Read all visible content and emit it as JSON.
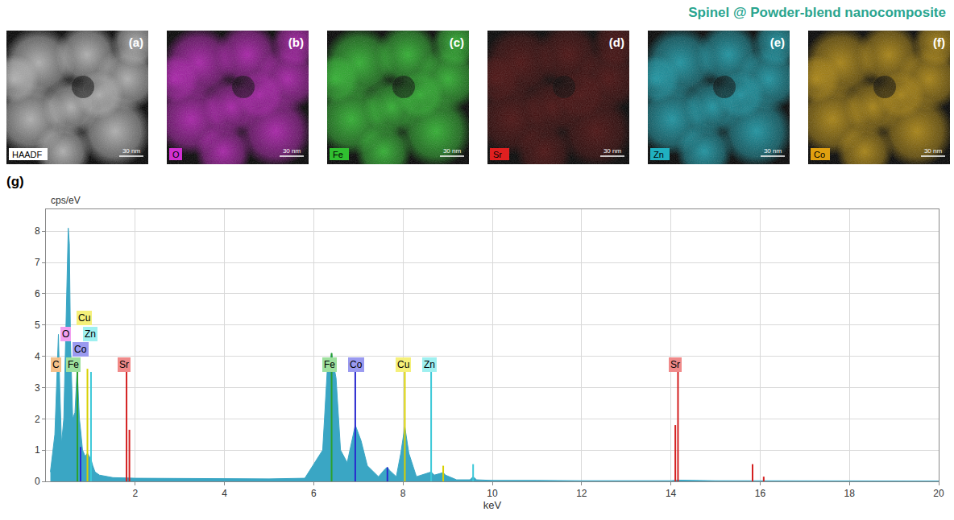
{
  "title": "Spinel @ Powder-blend nanocomposite",
  "panels": [
    {
      "letter": "(a)",
      "label": "HAADF",
      "color": "#b8b8b8",
      "label_color": "#ffffff",
      "scale_bar": "30 nm"
    },
    {
      "letter": "(b)",
      "label": "O",
      "color": "#b020b0",
      "label_color": "#d030d0",
      "scale_bar": "30 nm"
    },
    {
      "letter": "(c)",
      "label": "Fe",
      "color": "#30b830",
      "label_color": "#30c030",
      "scale_bar": "30 nm"
    },
    {
      "letter": "(d)",
      "label": "Sr",
      "color": "#4a0c0c",
      "label_color": "#e02020",
      "scale_bar": "30 nm"
    },
    {
      "letter": "(e)",
      "label": "Zn",
      "color": "#1a9aa8",
      "label_color": "#20b0c0",
      "scale_bar": "30 nm"
    },
    {
      "letter": "(f)",
      "label": "Co",
      "color": "#b08810",
      "label_color": "#e0a010",
      "scale_bar": "30 nm"
    }
  ],
  "chart_data": {
    "type": "area",
    "panel_letter": "(g)",
    "x_label": "keV",
    "y_label": "cps/eV",
    "xlim": [
      0,
      20
    ],
    "xticks": [
      2,
      4,
      6,
      8,
      10,
      12,
      14,
      16,
      18,
      20
    ],
    "ylim": [
      0,
      8.7
    ],
    "yticks": [
      0,
      1,
      2,
      3,
      4,
      5,
      6,
      7,
      8
    ],
    "grid": true,
    "color": "#3aa6c4",
    "x": [
      0.1,
      0.2,
      0.25,
      0.28,
      0.31,
      0.35,
      0.4,
      0.45,
      0.5,
      0.525,
      0.55,
      0.6,
      0.65,
      0.7,
      0.72,
      0.75,
      0.78,
      0.82,
      0.88,
      0.93,
      0.97,
      1.01,
      1.05,
      1.1,
      1.2,
      1.5,
      2,
      3,
      4,
      5,
      5.8,
      6.2,
      6.3,
      6.4,
      6.5,
      6.6,
      6.75,
      6.93,
      7.06,
      7.2,
      7.45,
      7.6,
      7.65,
      7.7,
      7.85,
      7.95,
      8.04,
      8.13,
      8.3,
      8.55,
      8.63,
      8.7,
      8.85,
      8.9,
      8.95,
      9.2,
      9.5,
      9.57,
      9.65,
      10,
      11,
      12,
      14,
      14.16,
      15,
      16,
      18,
      20
    ],
    "values": [
      0.3,
      1.5,
      3.5,
      4.7,
      3.0,
      1.2,
      2.0,
      5.5,
      8.1,
      7.6,
      4.5,
      2.0,
      2.2,
      3.6,
      3.0,
      2.0,
      1.6,
      1.0,
      0.8,
      0.9,
      0.8,
      0.7,
      0.5,
      0.3,
      0.2,
      0.12,
      0.1,
      0.09,
      0.08,
      0.08,
      0.1,
      1.0,
      3.5,
      4.1,
      3.3,
      1.0,
      0.6,
      1.8,
      1.3,
      0.5,
      0.15,
      0.4,
      0.45,
      0.35,
      0.15,
      0.9,
      1.75,
      0.9,
      0.15,
      0.25,
      0.3,
      0.2,
      0.25,
      0.28,
      0.2,
      0.05,
      0.05,
      0.15,
      0.05,
      0.03,
      0.03,
      0.02,
      0.02,
      0.04,
      0.02,
      0.02,
      0.01,
      0.01
    ],
    "lines": [
      {
        "element": "Fe",
        "color": "#2ca02c",
        "x": [
          0.705,
          6.4
        ],
        "values": [
          3.6,
          4.1
        ]
      },
      {
        "element": "Co",
        "color": "#2a2acf",
        "x": [
          0.776,
          6.93,
          7.65
        ],
        "values": [
          1.1,
          3.6,
          0.45
        ]
      },
      {
        "element": "Cu",
        "color": "#d8d000",
        "x": [
          0.93,
          8.04,
          8.9
        ],
        "values": [
          3.6,
          3.6,
          0.5
        ]
      },
      {
        "element": "Zn",
        "color": "#3cc8d8",
        "x": [
          1.01,
          8.63,
          9.57
        ],
        "values": [
          3.5,
          3.6,
          0.55
        ]
      },
      {
        "element": "Sr",
        "color": "#d42020",
        "x": [
          1.806,
          1.87,
          14.1,
          14.16,
          15.83,
          16.08
        ],
        "values": [
          3.6,
          1.65,
          1.8,
          3.6,
          0.55,
          0.15
        ]
      }
    ],
    "labels": [
      {
        "text": "Cu",
        "x": 0.85,
        "y": 5.22,
        "color": "#f5f07a"
      },
      {
        "text": "O",
        "x": 0.45,
        "y": 4.72,
        "color": "#f2a0f0"
      },
      {
        "text": "Zn",
        "x": 1.0,
        "y": 4.72,
        "color": "#9ef0f0"
      },
      {
        "text": "Co",
        "x": 0.78,
        "y": 4.22,
        "color": "#9a9af0"
      },
      {
        "text": "C",
        "x": 0.22,
        "y": 3.72,
        "color": "#f5c08a"
      },
      {
        "text": "Fe",
        "x": 0.62,
        "y": 3.72,
        "color": "#9ee09e"
      },
      {
        "text": "Sr",
        "x": 1.75,
        "y": 3.72,
        "color": "#f08a8a"
      },
      {
        "text": "Fe",
        "x": 6.35,
        "y": 3.72,
        "color": "#9ee09e"
      },
      {
        "text": "Co",
        "x": 6.95,
        "y": 3.72,
        "color": "#9a9af0"
      },
      {
        "text": "Cu",
        "x": 8.0,
        "y": 3.72,
        "color": "#f5f07a"
      },
      {
        "text": "Zn",
        "x": 8.6,
        "y": 3.72,
        "color": "#9ef0f0"
      },
      {
        "text": "Sr",
        "x": 14.1,
        "y": 3.72,
        "color": "#f08a8a"
      }
    ]
  }
}
